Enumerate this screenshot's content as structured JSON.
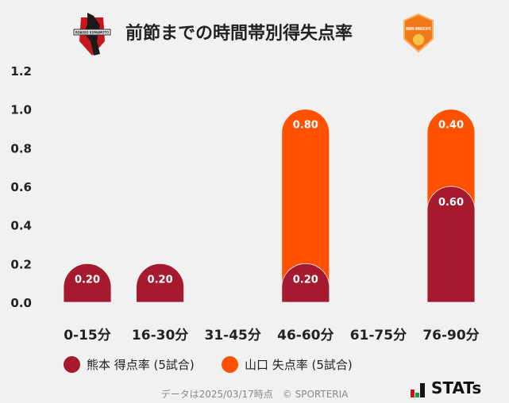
{
  "header": {
    "title": "前節までの時間帯別得失点率",
    "home_logo_text": "ROASSO KUMAMOTO",
    "away_logo_text": "RENOFA YAMAGUCHI FC"
  },
  "chart_data": {
    "type": "bar",
    "stacked": true,
    "categories": [
      "0-15分",
      "16-30分",
      "31-45分",
      "46-60分",
      "61-75分",
      "76-90分"
    ],
    "series": [
      {
        "name": "熊本 得点率 (5試合)",
        "color": "#a51a2e",
        "values": [
          0.2,
          0.2,
          0,
          0.2,
          0,
          0.6
        ],
        "labels": [
          "0.20",
          "0.20",
          "",
          "0.20",
          "",
          "0.60"
        ]
      },
      {
        "name": "山口 失点率 (5試合)",
        "color": "#ff5100",
        "values": [
          0,
          0,
          0,
          0.8,
          0,
          0.4
        ],
        "labels": [
          "",
          "",
          "",
          "0.80",
          "",
          "0.40"
        ]
      }
    ],
    "ylim": [
      0,
      1.2
    ],
    "yticks": [
      "0.0",
      "0.2",
      "0.4",
      "0.6",
      "0.8",
      "1.0",
      "1.2"
    ],
    "grid": false,
    "legend": "bottom"
  },
  "footer": {
    "note": "データは2025/03/17時点　© SPORTERIA",
    "brand": "STATs"
  }
}
